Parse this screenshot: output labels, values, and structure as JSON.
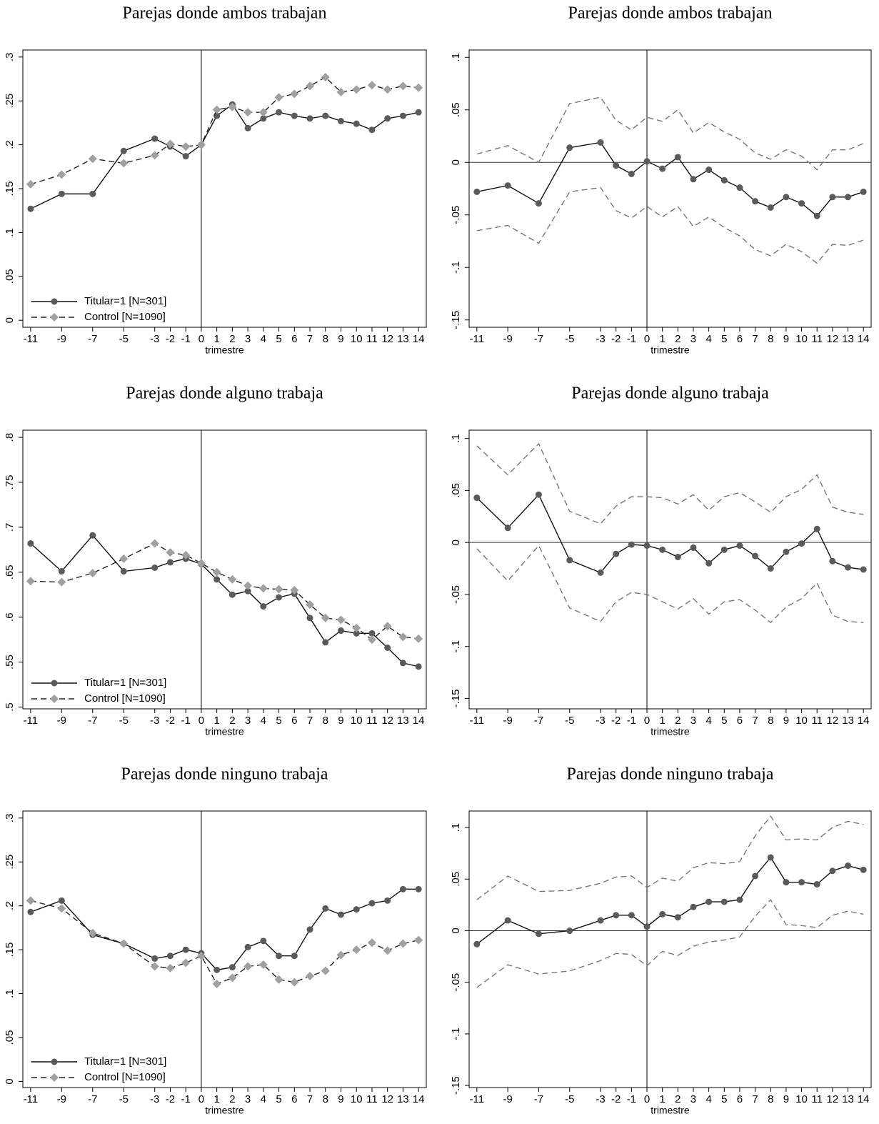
{
  "chart_data": [
    {
      "type": "line",
      "title": "Parejas donde ambos trabajan",
      "xlabel": "trimestre",
      "x": [
        -11,
        -9,
        -7,
        -5,
        -3,
        -2,
        -1,
        0,
        1,
        2,
        3,
        4,
        5,
        6,
        7,
        8,
        9,
        10,
        11,
        12,
        13,
        14
      ],
      "xticks": [
        -11,
        -9,
        -7,
        -5,
        -3,
        -2,
        -1,
        0,
        1,
        2,
        3,
        4,
        5,
        6,
        7,
        8,
        9,
        10,
        11,
        12,
        13,
        14
      ],
      "xlim": [
        -11.5,
        14.5
      ],
      "ylim": [
        -0.008,
        0.308
      ],
      "yticks": [
        0,
        {
          "value": 0.05,
          "label": ".05"
        },
        {
          "value": 0.1,
          "label": ".1"
        },
        {
          "value": 0.15,
          "label": ".15"
        },
        {
          "value": 0.2,
          "label": ".2"
        },
        {
          "value": 0.25,
          "label": ".25"
        },
        {
          "value": 0.3,
          "label": ".3"
        }
      ],
      "vline": 0,
      "legend": "lower left",
      "series": [
        {
          "name": "Titular=1 [N=301]",
          "color": "#5a5a5a",
          "line_color": "#111111",
          "dash": false,
          "marker": "circle",
          "values": [
            0.127,
            0.144,
            0.144,
            0.193,
            0.207,
            0.198,
            0.187,
            0.2,
            0.233,
            0.246,
            0.219,
            0.23,
            0.237,
            0.233,
            0.23,
            0.233,
            0.227,
            0.224,
            0.217,
            0.23,
            0.233,
            0.237
          ]
        },
        {
          "name": "Control [N=1090]",
          "color": "#a0a0a0",
          "line_color": "#222222",
          "dash": true,
          "marker": "diamond",
          "values": [
            0.155,
            0.166,
            0.184,
            0.179,
            0.188,
            0.201,
            0.198,
            0.2,
            0.24,
            0.243,
            0.237,
            0.237,
            0.254,
            0.258,
            0.267,
            0.277,
            0.26,
            0.263,
            0.268,
            0.263,
            0.267,
            0.265
          ]
        }
      ]
    },
    {
      "type": "line",
      "title": "Parejas donde ambos trabajan",
      "xlabel": "trimestre",
      "x": [
        -11,
        -9,
        -7,
        -5,
        -3,
        -2,
        -1,
        0,
        1,
        2,
        3,
        4,
        5,
        6,
        7,
        8,
        9,
        10,
        11,
        12,
        13,
        14
      ],
      "xticks": [
        -11,
        -9,
        -7,
        -5,
        -3,
        -2,
        -1,
        0,
        1,
        2,
        3,
        4,
        5,
        6,
        7,
        8,
        9,
        10,
        11,
        12,
        13,
        14
      ],
      "xlim": [
        -11.5,
        14.5
      ],
      "ylim": [
        -0.157,
        0.107
      ],
      "yticks": [
        {
          "value": -0.15,
          "label": "-.15"
        },
        {
          "value": -0.1,
          "label": "-.1"
        },
        {
          "value": -0.05,
          "label": "-.05"
        },
        0,
        {
          "value": 0.05,
          "label": ".05"
        },
        {
          "value": 0.1,
          "label": ".1"
        }
      ],
      "vline": 0,
      "hline": 0,
      "series": [
        {
          "color": "#5a5a5a",
          "line_color": "#111111",
          "dash": false,
          "marker": "circle",
          "values": [
            -0.028,
            -0.022,
            -0.039,
            0.014,
            0.019,
            -0.003,
            -0.011,
            0.001,
            -0.006,
            0.005,
            -0.016,
            -0.007,
            -0.017,
            -0.024,
            -0.037,
            -0.043,
            -0.033,
            -0.039,
            -0.051,
            -0.033,
            -0.033,
            -0.028
          ]
        },
        {
          "color": "#777777",
          "line_color": "#777777",
          "dash": true,
          "marker": "none",
          "values": [
            0.008,
            0.016,
            0,
            0.056,
            0.062,
            0.04,
            0.031,
            0.043,
            0.039,
            0.05,
            0.028,
            0.038,
            0.029,
            0.022,
            0.009,
            0.003,
            0.012,
            0.006,
            -0.007,
            0.012,
            0.012,
            0.018
          ]
        },
        {
          "color": "#777777",
          "line_color": "#777777",
          "dash": true,
          "marker": "none",
          "values": [
            -0.065,
            -0.06,
            -0.077,
            -0.028,
            -0.024,
            -0.046,
            -0.053,
            -0.042,
            -0.052,
            -0.042,
            -0.061,
            -0.052,
            -0.062,
            -0.07,
            -0.083,
            -0.089,
            -0.078,
            -0.085,
            -0.096,
            -0.078,
            -0.079,
            -0.074
          ]
        }
      ]
    },
    {
      "type": "line",
      "title": "Parejas donde alguno trabaja",
      "xlabel": "trimestre",
      "x": [
        -11,
        -9,
        -7,
        -5,
        -3,
        -2,
        -1,
        0,
        1,
        2,
        3,
        4,
        5,
        6,
        7,
        8,
        9,
        10,
        11,
        12,
        13,
        14
      ],
      "xticks": [
        -11,
        -9,
        -7,
        -5,
        -3,
        -2,
        -1,
        0,
        1,
        2,
        3,
        4,
        5,
        6,
        7,
        8,
        9,
        10,
        11,
        12,
        13,
        14
      ],
      "xlim": [
        -11.5,
        14.5
      ],
      "ylim": [
        0.498,
        0.808
      ],
      "yticks": [
        {
          "value": 0.5,
          "label": ".5"
        },
        {
          "value": 0.55,
          "label": ".55"
        },
        {
          "value": 0.6,
          "label": ".6"
        },
        {
          "value": 0.65,
          "label": ".65"
        },
        {
          "value": 0.7,
          "label": ".7"
        },
        {
          "value": 0.75,
          "label": ".75"
        },
        {
          "value": 0.8,
          "label": ".8"
        }
      ],
      "vline": 0,
      "legend": "lower left",
      "series": [
        {
          "name": "Titular=1 [N=301]",
          "color": "#5a5a5a",
          "line_color": "#111111",
          "dash": false,
          "marker": "circle",
          "values": [
            0.682,
            0.651,
            0.691,
            0.651,
            0.655,
            0.661,
            0.665,
            0.659,
            0.642,
            0.625,
            0.629,
            0.612,
            0.622,
            0.626,
            0.599,
            0.572,
            0.585,
            0.582,
            0.582,
            0.566,
            0.549,
            0.545
          ]
        },
        {
          "name": "Control [N=1090]",
          "color": "#a0a0a0",
          "line_color": "#222222",
          "dash": true,
          "marker": "diamond",
          "values": [
            0.64,
            0.639,
            0.649,
            0.665,
            0.682,
            0.672,
            0.669,
            0.66,
            0.65,
            0.642,
            0.635,
            0.632,
            0.631,
            0.63,
            0.614,
            0.599,
            0.597,
            0.588,
            0.575,
            0.59,
            0.578,
            0.576
          ]
        }
      ]
    },
    {
      "type": "line",
      "title": "Parejas donde alguno trabaja",
      "xlabel": "trimestre",
      "x": [
        -11,
        -9,
        -7,
        -5,
        -3,
        -2,
        -1,
        0,
        1,
        2,
        3,
        4,
        5,
        6,
        7,
        8,
        9,
        10,
        11,
        12,
        13,
        14
      ],
      "xticks": [
        -11,
        -9,
        -7,
        -5,
        -3,
        -2,
        -1,
        0,
        1,
        2,
        3,
        4,
        5,
        6,
        7,
        8,
        9,
        10,
        11,
        12,
        13,
        14
      ],
      "xlim": [
        -11.5,
        14.5
      ],
      "ylim": [
        -0.16,
        0.108
      ],
      "yticks": [
        {
          "value": -0.15,
          "label": "-.15"
        },
        {
          "value": -0.1,
          "label": "-.1"
        },
        {
          "value": -0.05,
          "label": "-.05"
        },
        0,
        {
          "value": 0.05,
          "label": ".05"
        },
        {
          "value": 0.1,
          "label": ".1"
        }
      ],
      "vline": 0,
      "hline": 0,
      "series": [
        {
          "color": "#5a5a5a",
          "line_color": "#111111",
          "dash": false,
          "marker": "circle",
          "values": [
            0.043,
            0.014,
            0.046,
            -0.017,
            -0.029,
            -0.011,
            -0.002,
            -0.003,
            -0.007,
            -0.014,
            -0.005,
            -0.02,
            -0.007,
            -0.003,
            -0.013,
            -0.025,
            -0.009,
            -0.001,
            0.013,
            -0.018,
            -0.024,
            -0.026
          ]
        },
        {
          "color": "#777777",
          "line_color": "#777777",
          "dash": true,
          "marker": "none",
          "values": [
            0.093,
            0.065,
            0.095,
            0.03,
            0.018,
            0.035,
            0.044,
            0.044,
            0.043,
            0.037,
            0.046,
            0.031,
            0.044,
            0.048,
            0.039,
            0.029,
            0.044,
            0.051,
            0.065,
            0.034,
            0.029,
            0.027
          ]
        },
        {
          "color": "#777777",
          "line_color": "#777777",
          "dash": true,
          "marker": "none",
          "values": [
            -0.006,
            -0.037,
            -0.003,
            -0.063,
            -0.076,
            -0.057,
            -0.048,
            -0.05,
            -0.057,
            -0.064,
            -0.054,
            -0.069,
            -0.057,
            -0.055,
            -0.065,
            -0.077,
            -0.062,
            -0.054,
            -0.039,
            -0.07,
            -0.076,
            -0.077
          ]
        }
      ]
    },
    {
      "type": "line",
      "title": "Parejas donde ninguno trabaja",
      "xlabel": "trimestre",
      "x": [
        -11,
        -9,
        -7,
        -5,
        -3,
        -2,
        -1,
        0,
        1,
        2,
        3,
        4,
        5,
        6,
        7,
        8,
        9,
        10,
        11,
        12,
        13,
        14
      ],
      "xticks": [
        -11,
        -9,
        -7,
        -5,
        -3,
        -2,
        -1,
        0,
        1,
        2,
        3,
        4,
        5,
        6,
        7,
        8,
        9,
        10,
        11,
        12,
        13,
        14
      ],
      "xlim": [
        -11.5,
        14.5
      ],
      "ylim": [
        -0.007,
        0.308
      ],
      "yticks": [
        0,
        {
          "value": 0.05,
          "label": ".05"
        },
        {
          "value": 0.1,
          "label": ".1"
        },
        {
          "value": 0.15,
          "label": ".15"
        },
        {
          "value": 0.2,
          "label": ".2"
        },
        {
          "value": 0.25,
          "label": ".25"
        },
        {
          "value": 0.3,
          "label": ".3"
        }
      ],
      "vline": 0,
      "legend": "lower left",
      "series": [
        {
          "name": "Titular=1 [N=301]",
          "color": "#5a5a5a",
          "line_color": "#111111",
          "dash": false,
          "marker": "circle",
          "values": [
            0.193,
            0.206,
            0.167,
            0.157,
            0.14,
            0.143,
            0.15,
            0.146,
            0.127,
            0.13,
            0.153,
            0.16,
            0.143,
            0.143,
            0.173,
            0.197,
            0.19,
            0.196,
            0.203,
            0.206,
            0.219,
            0.219
          ]
        },
        {
          "name": "Control [N=1090]",
          "color": "#a0a0a0",
          "line_color": "#222222",
          "dash": true,
          "marker": "diamond",
          "values": [
            0.206,
            0.197,
            0.169,
            0.157,
            0.131,
            0.129,
            0.135,
            0.143,
            0.111,
            0.118,
            0.131,
            0.133,
            0.116,
            0.113,
            0.12,
            0.126,
            0.144,
            0.15,
            0.158,
            0.149,
            0.157,
            0.161
          ]
        }
      ]
    },
    {
      "type": "line",
      "title": "Parejas donde ninguno trabaja",
      "xlabel": "trimestre",
      "x": [
        -11,
        -9,
        -7,
        -5,
        -3,
        -2,
        -1,
        0,
        1,
        2,
        3,
        4,
        5,
        6,
        7,
        8,
        9,
        10,
        11,
        12,
        13,
        14
      ],
      "xticks": [
        -11,
        -9,
        -7,
        -5,
        -3,
        -2,
        -1,
        0,
        1,
        2,
        3,
        4,
        5,
        6,
        7,
        8,
        9,
        10,
        11,
        12,
        13,
        14
      ],
      "xlim": [
        -11.5,
        14.5
      ],
      "ylim": [
        -0.152,
        0.116
      ],
      "yticks": [
        {
          "value": -0.15,
          "label": "-.15"
        },
        {
          "value": -0.1,
          "label": "-.1"
        },
        {
          "value": -0.05,
          "label": "-.05"
        },
        0,
        {
          "value": 0.05,
          "label": ".05"
        },
        {
          "value": 0.1,
          "label": ".1"
        }
      ],
      "vline": 0,
      "hline": 0,
      "series": [
        {
          "color": "#5a5a5a",
          "line_color": "#111111",
          "dash": false,
          "marker": "circle",
          "values": [
            -0.013,
            0.01,
            -0.003,
            0,
            0.01,
            0.015,
            0.015,
            0.004,
            0.016,
            0.013,
            0.023,
            0.028,
            0.028,
            0.03,
            0.053,
            0.071,
            0.047,
            0.047,
            0.045,
            0.058,
            0.063,
            0.059
          ]
        },
        {
          "color": "#777777",
          "line_color": "#777777",
          "dash": true,
          "marker": "none",
          "values": [
            0.03,
            0.053,
            0.038,
            0.039,
            0.046,
            0.052,
            0.053,
            0.042,
            0.051,
            0.048,
            0.061,
            0.066,
            0.065,
            0.067,
            0.092,
            0.111,
            0.088,
            0.089,
            0.088,
            0.1,
            0.106,
            0.103
          ]
        },
        {
          "color": "#777777",
          "line_color": "#777777",
          "dash": true,
          "marker": "none",
          "values": [
            -0.055,
            -0.033,
            -0.042,
            -0.039,
            -0.029,
            -0.022,
            -0.023,
            -0.034,
            -0.02,
            -0.024,
            -0.015,
            -0.011,
            -0.009,
            -0.006,
            0.014,
            0.03,
            0.006,
            0.005,
            0.003,
            0.015,
            0.019,
            0.016
          ]
        }
      ]
    }
  ]
}
